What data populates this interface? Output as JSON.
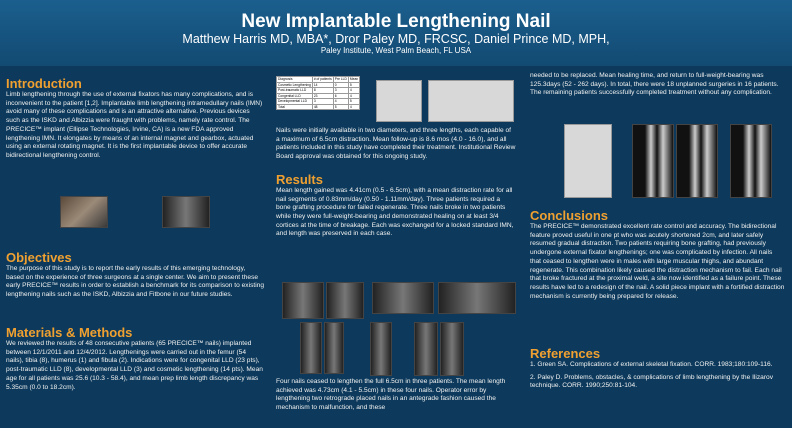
{
  "header": {
    "title": "New Implantable Lengthening Nail",
    "authors": "Matthew Harris MD, MBA*, Dror Paley MD, FRCSC, Daniel Prince MD, MPH,",
    "affiliation": "Paley Institute, West Palm Beach, FL USA"
  },
  "intro": {
    "heading": "Introduction",
    "text": "Limb lengthening through the use of external fixators has many complications, and is inconvenient to the patient [1,2]. Implantable limb lengthening intramedullary nails (IMN) avoid many of these complications and is an attractive alternative. Previous devices such as the ISKD and Albizzia were fraught with problems, namely rate control. The PRECICE™ implant (Ellipse Technologies, Irvine, CA) is a new FDA approved lengthening IMN. It elongates by means of an internal magnet and gearbox, actuated using an external rotating magnet. It is the first implantable device to offer accurate bidirectional lengthening control."
  },
  "objectives": {
    "heading": "Objectives",
    "text": "The purpose of this study is to report the early results of this emerging technology, based on the experience of three surgeons at a single center. We aim to present these early PRECICE™ results in order to establish a benchmark for its comparison to existing lengthening nails such as the ISKD, Albizzia and Fitbone in our future studies."
  },
  "methods": {
    "heading": "Materials & Methods",
    "text": "We reviewed the results of 48 consecutive patients (65 PRECICE™ nails) implanted between 12/1/2011 and 12/4/2012. Lengthenings were carried out in the femur (54 nails), tibia (8), humerus (1) and fibula (2). Indications were for congenital LLD (23 pts), post-traumatic LLD (8), developmental LLD (3) and cosmetic lengthening (14 pts). Mean age for all patients was 25.6 (10.3 - 58.4), and mean prep limb length discrepancy was 5.35cm (0.0 to 18.2cm)."
  },
  "middle": {
    "nails_text": "Nails were initially available in two diameters, and three lengths, each capable of a maximum of 6.5cm distraction. Mean follow-up is 8.6 mos (4.0 - 16.0), and all patients included in this study have completed their treatment. Institutional Review Board approval was obtained for this ongoing study.",
    "results_heading": "Results",
    "results_text": "Mean length gained was 4.41cm (0.5 - 6.5cm), with a mean distraction rate for all nail segments of 0.83mm/day (0.50 - 1.11mm/day). Three patients required a bone grafting procedure for failed regenerate. Three nails broke in two patients while they were full-weight-bearing and demonstrated healing on at least 3/4 cortices at the time of breakage. Each was exchanged for a locked standard IMN, and length was preserved in each case.",
    "bottom_text": "Four nails ceased to lengthen the full 6.5cm in three patients. The mean length achieved was 4.73cm (4.1 - 5.5cm) in these four nails. Operator error by lengthening two retrograde placed nails in an antegrade fashion caused the mechanism to malfunction, and these"
  },
  "right": {
    "top_text": "needed to be replaced. Mean healing time, and return to full-weight-bearing was 125.3days (52 - 262 days). In total, there were 18 unplanned surgeries in 16 patients. The remaining patients successfully completed treatment without any complication.",
    "conclusions_heading": "Conclusions",
    "conclusions_text": "The PRECICE™ demonstrated excellent rate control and accuracy. The bidirectional feature proved useful in one pt who was acutely shortened 2cm, and later safely resumed gradual distraction. Two patients requiring bone grafting, had previously undergone external fixator lengthenings; one was complicated by infection. All nails that ceased to lengthen were in males with large muscular thighs, and abundant regenerate. This combination likely caused the distraction mechanism to fail. Each nail that broke fractured at the proximal weld, a site now identified as a failure point. These results have led to a redesign of the nail. A solid piece implant with a fortified distraction mechanism is currently being prepared for release.",
    "references_heading": "References",
    "ref1": "1. Green SA. Complications of external skeletal fixation. CORR. 1983;180:109-116.",
    "ref2": "2. Paley D. Problems, obstacles, & complications of limb lengthening by the Ilizarov technique. CORR. 1990;250:81-104."
  },
  "diag_table": {
    "headers": [
      "Diagnosis",
      "# of patients",
      "Pre LLD",
      "Mean"
    ],
    "rows": [
      [
        "Cosmetic Lengthening",
        "14",
        "0",
        "5"
      ],
      [
        "Post-traumatic LLD",
        "8",
        "3",
        "4"
      ],
      [
        "Congenital LLD",
        "23",
        "6",
        "4"
      ],
      [
        "Developmental LLD",
        "3",
        "4",
        "5"
      ],
      [
        "Total",
        "48",
        "5",
        "4"
      ]
    ]
  }
}
